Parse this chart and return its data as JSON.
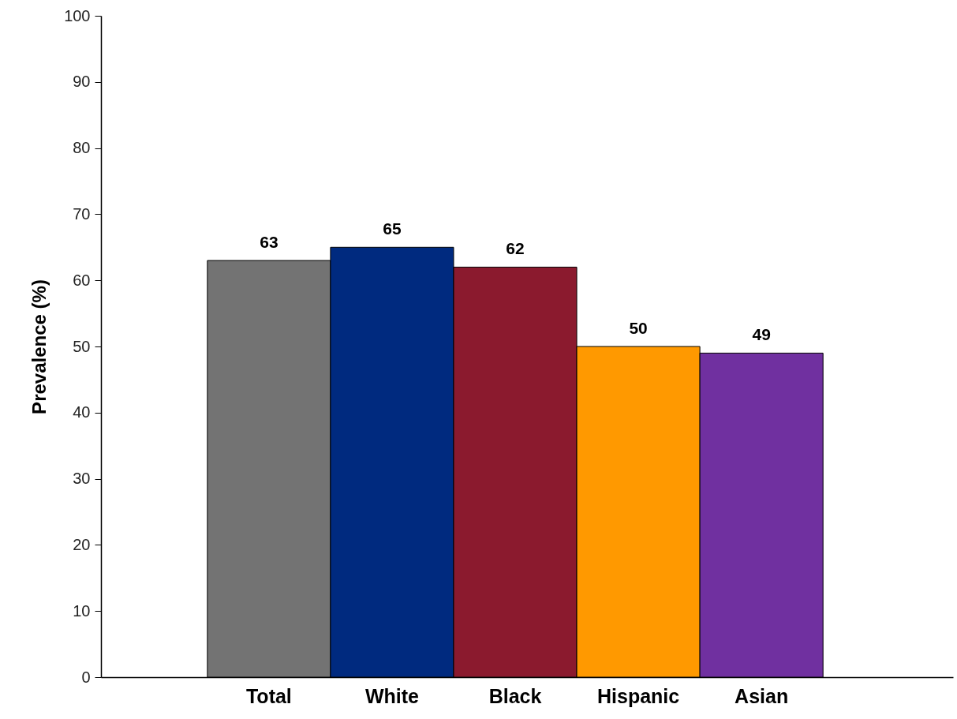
{
  "chart_data": {
    "type": "bar",
    "ylabel": "Prevalence (%)",
    "categories": [
      "Total",
      "White",
      "Black",
      "Hispanic",
      "Asian"
    ],
    "values": [
      63,
      65,
      62,
      50,
      49
    ],
    "colors": [
      "#737373",
      "#002a7f",
      "#8b1a2e",
      "#ff9900",
      "#7030a0"
    ],
    "ylim": [
      0,
      100
    ],
    "yticks": [
      0,
      10,
      20,
      30,
      40,
      50,
      60,
      70,
      80,
      90,
      100
    ],
    "data_labels": true
  }
}
